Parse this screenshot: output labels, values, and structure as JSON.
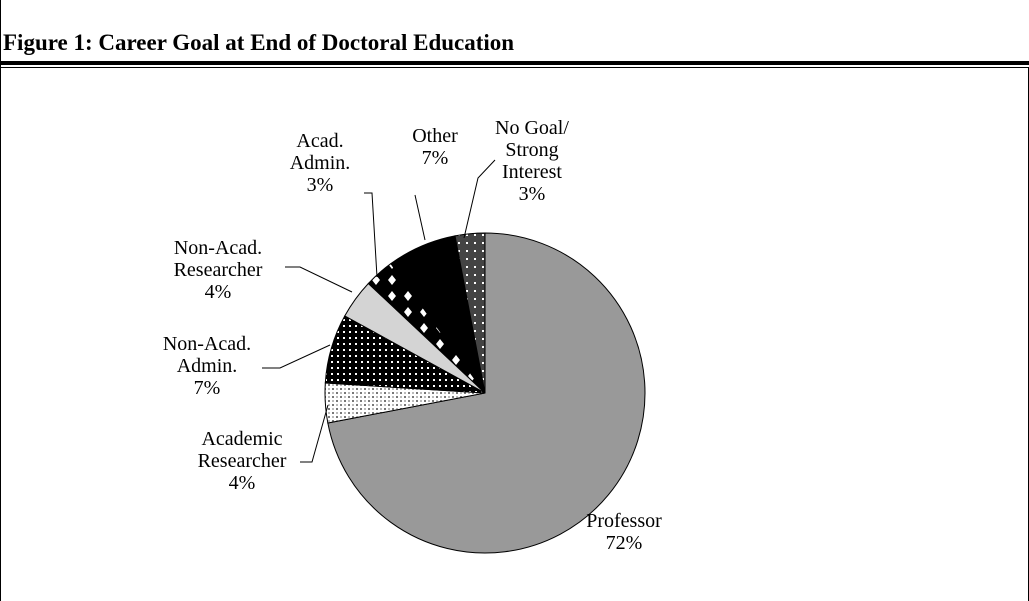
{
  "header": {
    "title": "Figure 1: Career Goal at End of Doctoral Education"
  },
  "chart_data": {
    "type": "pie",
    "title": "Figure 1: Career Goal at End of Doctoral Education",
    "slices": [
      {
        "label": [
          "Professor"
        ],
        "value": 72,
        "value_label": "72%",
        "fill": "#999999",
        "pattern": "solid"
      },
      {
        "label": [
          "Academic",
          "Researcher"
        ],
        "value": 4,
        "value_label": "4%",
        "fill": "#ffffff",
        "pattern": "checker"
      },
      {
        "label": [
          "Non-Acad.",
          "Admin."
        ],
        "value": 7,
        "value_label": "7%",
        "fill": "#000000",
        "pattern": "dots"
      },
      {
        "label": [
          "Non-Acad.",
          "Researcher"
        ],
        "value": 4,
        "value_label": "4%",
        "fill": "#d4d4d4",
        "pattern": "solid"
      },
      {
        "label": [
          "Acad.",
          "Admin."
        ],
        "value": 3,
        "value_label": "3%",
        "fill": "#000000",
        "pattern": "diamonds"
      },
      {
        "label": [
          "Other"
        ],
        "value": 7,
        "value_label": "7%",
        "fill": "#000000",
        "pattern": "solid"
      },
      {
        "label": [
          "No Goal/",
          "Strong",
          "Interest"
        ],
        "value": 3,
        "value_label": "3%",
        "fill": "#444444",
        "pattern": "sparse-dots"
      }
    ]
  }
}
